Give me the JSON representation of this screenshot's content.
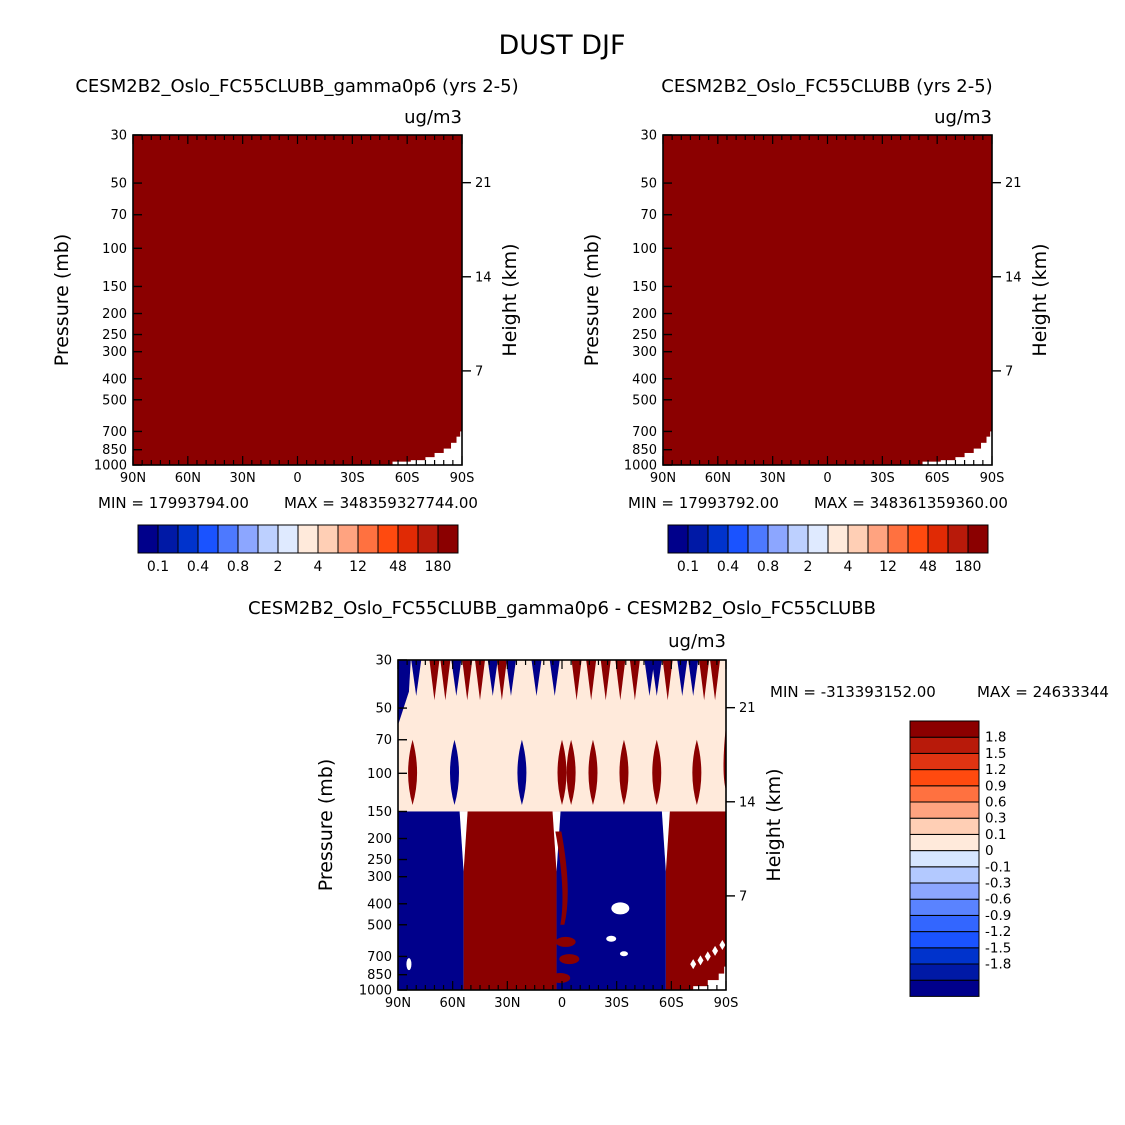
{
  "title": "DUST DJF",
  "units": "ug/m3",
  "axes": {
    "y_left_label": "Pressure (mb)",
    "y_right_label": "Height (km)",
    "pressure_ticks": [
      30,
      50,
      70,
      100,
      150,
      200,
      250,
      300,
      400,
      500,
      700,
      850,
      1000
    ],
    "height_ticks": [
      21,
      14,
      7
    ],
    "lat_ticks": [
      "90N",
      "60N",
      "30N",
      "0",
      "30S",
      "60S",
      "90S"
    ],
    "ylim_mb": [
      30,
      1000
    ],
    "xlim_deg": [
      90,
      -90
    ]
  },
  "colors": {
    "plot_fill": "#8b0000",
    "top_scale": [
      "#00008b",
      "#0019a6",
      "#0033cc",
      "#1a53ff",
      "#4d79ff",
      "#8ca6ff",
      "#bdd0ff",
      "#dfeaff",
      "#ffeadb",
      "#ffcfb5",
      "#ffa380",
      "#ff7140",
      "#ff4a0f",
      "#e02a05",
      "#b81a0a",
      "#8b0000"
    ],
    "diff_scale": [
      "#00008b",
      "#0019a6",
      "#0033cc",
      "#1a53ff",
      "#3366ff",
      "#5a83ff",
      "#8ca6ff",
      "#b3c9ff",
      "#d6e6ff",
      "#ffeadb",
      "#ffcfb5",
      "#ffa380",
      "#ff7140",
      "#ff4a0f",
      "#e03412",
      "#b81a0a",
      "#8b0000"
    ],
    "diff_upper_bg": "#ffeadb",
    "diff_blue": "#00008b",
    "diff_red": "#8b0000"
  },
  "chart_data": [
    {
      "type": "heatmap",
      "id": "left",
      "title": "CESM2B2_Oslo_FC55CLUBB_gamma0p6 (yrs 2-5)",
      "units": "ug/m3",
      "min_label": "MIN = 17993794.00",
      "max_label": "MAX = 348359327744.00",
      "colorbar_tick_labels": [
        "0.1",
        "0.4",
        "0.8",
        "2",
        "4",
        "12",
        "48",
        "180"
      ],
      "description_value": "saturated above 180 everywhere except near-surface south polar"
    },
    {
      "type": "heatmap",
      "id": "right",
      "title": "CESM2B2_Oslo_FC55CLUBB (yrs 2-5)",
      "units": "ug/m3",
      "min_label": "MIN = 17993792.00",
      "max_label": "MAX = 348361359360.00",
      "colorbar_tick_labels": [
        "0.1",
        "0.4",
        "0.8",
        "2",
        "4",
        "12",
        "48",
        "180"
      ]
    },
    {
      "type": "heatmap",
      "id": "diff",
      "title": "CESM2B2_Oslo_FC55CLUBB_gamma0p6 - CESM2B2_Oslo_FC55CLUBB",
      "units": "ug/m3",
      "min_label": "MIN = -313393152.00",
      "max_label": "MAX = 24633344",
      "colorbar_levels": [
        "1.8",
        "1.5",
        "1.2",
        "0.9",
        "0.6",
        "0.3",
        "0.1",
        "0",
        "-0.1",
        "-0.3",
        "-0.6",
        "-0.9",
        "-1.2",
        "-1.5",
        "-1.8"
      ],
      "lower_bands": [
        {
          "lat_from": 90,
          "lat_to": 54,
          "sign": "negative"
        },
        {
          "lat_from": 54,
          "lat_to": 3,
          "sign": "positive"
        },
        {
          "lat_from": 3,
          "lat_to": -57,
          "sign": "negative"
        },
        {
          "lat_from": -57,
          "lat_to": -90,
          "sign": "positive"
        }
      ],
      "upper_spikes_lat": [
        {
          "lat": 80,
          "sign": "negative"
        },
        {
          "lat": 70,
          "sign": "positive"
        },
        {
          "lat": 64,
          "sign": "positive"
        },
        {
          "lat": 58,
          "sign": "negative"
        },
        {
          "lat": 52,
          "sign": "positive"
        },
        {
          "lat": 45,
          "sign": "positive"
        },
        {
          "lat": 38,
          "sign": "negative"
        },
        {
          "lat": 33,
          "sign": "positive"
        },
        {
          "lat": 28,
          "sign": "negative"
        },
        {
          "lat": 14,
          "sign": "negative"
        },
        {
          "lat": 4,
          "sign": "negative"
        },
        {
          "lat": -8,
          "sign": "positive"
        },
        {
          "lat": -16,
          "sign": "positive"
        },
        {
          "lat": -24,
          "sign": "positive"
        },
        {
          "lat": -32,
          "sign": "positive"
        },
        {
          "lat": -40,
          "sign": "positive"
        },
        {
          "lat": -48,
          "sign": "negative"
        },
        {
          "lat": -52,
          "sign": "negative"
        },
        {
          "lat": -58,
          "sign": "positive"
        },
        {
          "lat": -66,
          "sign": "negative"
        },
        {
          "lat": -72,
          "sign": "negative"
        },
        {
          "lat": -78,
          "sign": "positive"
        },
        {
          "lat": -84,
          "sign": "positive"
        }
      ],
      "mid_lenses_lat": [
        {
          "lat": 82,
          "sign": "positive"
        },
        {
          "lat": 59,
          "sign": "negative"
        },
        {
          "lat": 22,
          "sign": "negative"
        },
        {
          "lat": 0,
          "sign": "positive"
        },
        {
          "lat": -5,
          "sign": "positive"
        },
        {
          "lat": -17,
          "sign": "positive"
        },
        {
          "lat": -34,
          "sign": "positive"
        },
        {
          "lat": -52,
          "sign": "positive"
        },
        {
          "lat": -74,
          "sign": "positive"
        }
      ]
    }
  ]
}
